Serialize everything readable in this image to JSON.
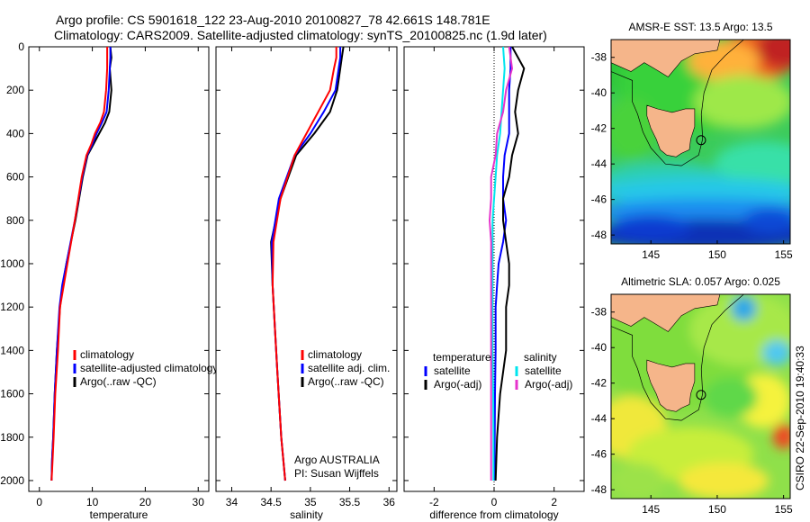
{
  "figure": {
    "title_line1": "Argo profile: CS 5901618_122 23-Aug-2010 20100827_78 42.661S 148.781E",
    "title_line2": "Climatology: CARS2009. Satellite-adjusted climatology: synTS_20100825.nc (1.9d later)",
    "credit": "CSIRO 22-Sep-2010 19:40:33",
    "annotation_line1": "Argo AUSTRALIA",
    "annotation_line2": "PI: Susan Wijffels"
  },
  "colors": {
    "climatology": "#ff0000",
    "satellite": "#0000ff",
    "argo": "#000000",
    "sal_satellite": "#00e5ee",
    "sal_argo": "#e633cc",
    "land": "#f5b58a"
  },
  "chart_data": [
    {
      "type": "line",
      "id": "temperature",
      "xlabel": "temperature",
      "ylabel": "",
      "xlim": [
        -2,
        32
      ],
      "ylim": [
        2050,
        0
      ],
      "xticks": [
        0,
        10,
        20,
        30
      ],
      "yticks": [
        0,
        200,
        400,
        600,
        800,
        1000,
        1200,
        1400,
        1600,
        1800,
        2000
      ],
      "legend": [
        "climatology",
        "satellite-adjusted climatology",
        "Argo(..raw -QC)"
      ],
      "legend_placement": "center-right",
      "series": [
        {
          "name": "climatology",
          "color": "#ff0000",
          "x": [
            12.8,
            12.8,
            12.8,
            12.6,
            12.2,
            11.5,
            10.5,
            9.8,
            8.9,
            8.0,
            6.7,
            5.3,
            4.6,
            3.9,
            3.5,
            3.0,
            2.7,
            2.5,
            2.3
          ],
          "y": [
            0,
            50,
            100,
            200,
            300,
            350,
            400,
            450,
            500,
            600,
            800,
            1000,
            1100,
            1200,
            1400,
            1600,
            1800,
            1900,
            2000
          ]
        },
        {
          "name": "satellite-adjusted climatology",
          "color": "#0000ff",
          "x": [
            13.4,
            13.4,
            13.3,
            13.1,
            12.7,
            11.8,
            10.8,
            10.0,
            9.0,
            8.1,
            6.7,
            5.1,
            4.3,
            3.8,
            3.3,
            2.9,
            2.6,
            2.4,
            2.3
          ],
          "y": [
            0,
            50,
            100,
            200,
            300,
            350,
            400,
            450,
            500,
            600,
            800,
            1000,
            1100,
            1200,
            1400,
            1600,
            1800,
            1900,
            2000
          ]
        },
        {
          "name": "Argo(..raw -QC)",
          "color": "#000000",
          "x": [
            13.4,
            13.6,
            13.3,
            13.6,
            13.2,
            12.4,
            11.3,
            10.2,
            9.1,
            8.2,
            6.8,
            5.1,
            4.4,
            3.9,
            3.3,
            2.9,
            2.6,
            2.4,
            2.3
          ],
          "y": [
            0,
            50,
            100,
            200,
            300,
            350,
            400,
            450,
            500,
            600,
            800,
            1000,
            1100,
            1200,
            1400,
            1600,
            1800,
            1900,
            2000
          ]
        }
      ]
    },
    {
      "type": "line",
      "id": "salinity",
      "xlabel": "salinity",
      "ylabel": "",
      "xlim": [
        33.8,
        36.1
      ],
      "ylim": [
        2050,
        0
      ],
      "xticks": [
        34,
        34.5,
        35,
        35.5,
        36
      ],
      "legend": [
        "climatology",
        "satellite adj. clim.",
        "Argo(..raw -QC)"
      ],
      "legend_placement": "center-right",
      "series": [
        {
          "name": "climatology",
          "color": "#ff0000",
          "x": [
            35.33,
            35.33,
            35.3,
            35.25,
            35.1,
            34.95,
            34.8,
            34.62,
            34.53,
            34.52,
            34.55,
            34.58,
            34.63,
            34.68
          ],
          "y": [
            0,
            50,
            100,
            200,
            300,
            400,
            500,
            700,
            900,
            1100,
            1300,
            1500,
            1800,
            2000
          ]
        },
        {
          "name": "satellite adj. clim.",
          "color": "#0000ff",
          "x": [
            35.38,
            35.38,
            35.36,
            35.32,
            35.17,
            35.0,
            34.8,
            34.6,
            34.51,
            34.52,
            34.55,
            34.58,
            34.63,
            34.68
          ],
          "y": [
            0,
            50,
            100,
            200,
            300,
            400,
            500,
            700,
            900,
            1100,
            1300,
            1500,
            1800,
            2000
          ]
        },
        {
          "name": "Argo(..raw -QC)",
          "color": "#000000",
          "x": [
            35.42,
            35.4,
            35.38,
            35.34,
            35.25,
            35.05,
            34.82,
            34.62,
            34.5,
            34.52,
            34.55,
            34.58,
            34.63,
            34.68
          ],
          "y": [
            0,
            50,
            100,
            200,
            300,
            400,
            500,
            700,
            900,
            1100,
            1300,
            1500,
            1800,
            2000
          ]
        }
      ]
    },
    {
      "type": "line",
      "id": "difference",
      "xlabel": "difference from climatology",
      "ylabel": "",
      "xlim": [
        -3,
        3
      ],
      "ylim": [
        2050,
        0
      ],
      "xticks": [
        -2,
        0,
        2
      ],
      "legend_temperature_header": "temperature",
      "legend_salinity_header": "salinity",
      "legend": [
        "satellite",
        "Argo(-adj)",
        "satellite",
        "Argo(-adj)"
      ],
      "legend_placement": "bottom-center",
      "series": [
        {
          "name": "satellite",
          "group": "temperature",
          "color": "#0000ff",
          "x": [
            0.55,
            0.55,
            0.5,
            0.5,
            0.5,
            0.35,
            0.3,
            0.3,
            0.4,
            0.3,
            0.15,
            0.1,
            0.05,
            0.05,
            0.03,
            0.02,
            0.02
          ],
          "y": [
            0,
            100,
            200,
            300,
            400,
            500,
            600,
            700,
            800,
            900,
            1000,
            1100,
            1200,
            1400,
            1600,
            1800,
            2000
          ]
        },
        {
          "name": "Argo(-adj)",
          "group": "temperature",
          "color": "#000000",
          "x": [
            0.6,
            1.0,
            0.8,
            0.7,
            0.8,
            0.6,
            0.5,
            0.3,
            0.3,
            0.4,
            0.5,
            0.5,
            0.4,
            0.4,
            0.2,
            0.1,
            0.05
          ],
          "y": [
            0,
            100,
            200,
            300,
            400,
            500,
            600,
            700,
            800,
            900,
            1000,
            1100,
            1200,
            1400,
            1600,
            1800,
            2000
          ]
        },
        {
          "name": "satellite",
          "group": "salinity",
          "color": "#00e5ee",
          "x": [
            0.3,
            0.35,
            0.3,
            0.25,
            0.2,
            0.1,
            0.05,
            0.0,
            -0.05,
            -0.05,
            -0.05,
            -0.05,
            -0.05,
            -0.05,
            -0.03,
            -0.02,
            -0.02
          ],
          "y": [
            0,
            100,
            200,
            300,
            400,
            500,
            600,
            700,
            800,
            900,
            1000,
            1100,
            1200,
            1400,
            1600,
            1800,
            2000
          ]
        },
        {
          "name": "Argo(-adj)",
          "group": "salinity",
          "color": "#e633cc",
          "x": [
            0.5,
            0.6,
            0.4,
            0.3,
            0.1,
            0.05,
            -0.1,
            -0.1,
            -0.15,
            -0.1,
            -0.1,
            -0.1,
            -0.1,
            -0.1,
            -0.1,
            -0.1,
            -0.1
          ],
          "y": [
            0,
            100,
            200,
            300,
            400,
            500,
            600,
            700,
            800,
            900,
            1000,
            1100,
            1200,
            1400,
            1600,
            1800,
            2000
          ]
        }
      ]
    },
    {
      "type": "heatmap",
      "id": "sst_map",
      "title": "AMSR-E SST: 13.5 Argo: 13.5",
      "xlim": [
        142,
        155.5
      ],
      "ylim": [
        -48.5,
        -37
      ],
      "xticks": [
        145,
        150,
        155
      ],
      "yticks": [
        -38,
        -40,
        -42,
        -44,
        -46,
        -48
      ],
      "float_lon": 148.781,
      "float_lat": -42.661
    },
    {
      "type": "heatmap",
      "id": "sla_map",
      "title": "Altimetric SLA: 0.057 Argo: 0.025",
      "xlim": [
        142,
        155.5
      ],
      "ylim": [
        -48.5,
        -37
      ],
      "xticks": [
        145,
        150,
        155
      ],
      "yticks": [
        -38,
        -40,
        -42,
        -44,
        -46,
        -48
      ],
      "float_lon": 148.781,
      "float_lat": -42.661
    }
  ]
}
